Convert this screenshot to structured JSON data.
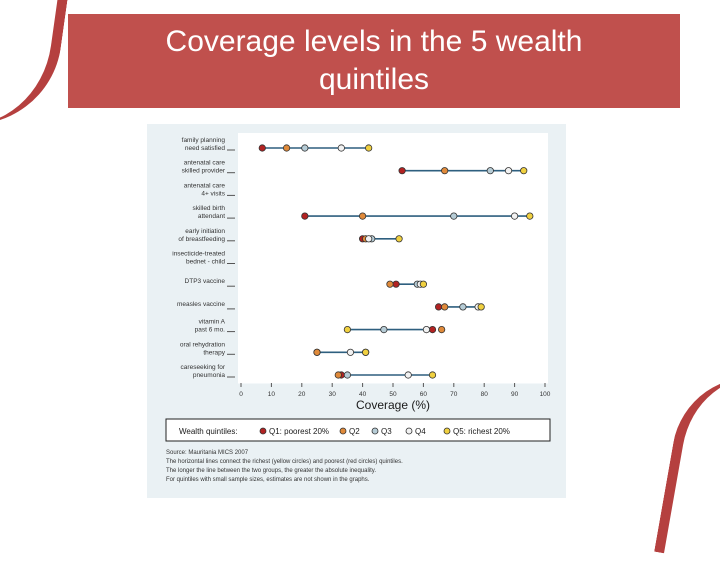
{
  "slide": {
    "title": "Coverage levels in the 5 wealth quintiles",
    "accent_color": "#c0504d"
  },
  "chart_data": {
    "type": "dot",
    "xlabel": "Coverage (%)",
    "xlim": [
      0,
      100
    ],
    "xticks": [
      "0",
      "10",
      "20",
      "30",
      "40",
      "50",
      "60",
      "70",
      "80",
      "90",
      "100"
    ],
    "categories": [
      [
        "family planning",
        "need satisfied"
      ],
      [
        "antenatal care",
        "skilled provider"
      ],
      [
        "antenatal care",
        "4+ visits"
      ],
      [
        "skilled birth",
        "attendant"
      ],
      [
        "early initiation",
        "of breastfeeding"
      ],
      [
        "insecticide-treated",
        "bednet - child"
      ],
      [
        "DTP3 vaccine"
      ],
      [
        "measles vaccine"
      ],
      [
        "vitamin A",
        "past 6 mo."
      ],
      [
        "oral rehydration",
        "therapy"
      ],
      [
        "careseeking for",
        "pneumonia"
      ]
    ],
    "series": [
      {
        "name": "Q1: poorest 20%",
        "color": "#b22222",
        "values": [
          7,
          53,
          null,
          21,
          40,
          null,
          51,
          65,
          63,
          25,
          33
        ]
      },
      {
        "name": "Q2",
        "color": "#e08a3a",
        "values": [
          15,
          67,
          null,
          40,
          41,
          null,
          49,
          67,
          66,
          25,
          32
        ]
      },
      {
        "name": "Q3",
        "color": "#b6ccd6",
        "values": [
          21,
          82,
          null,
          70,
          43,
          null,
          58,
          73,
          47,
          41,
          35
        ]
      },
      {
        "name": "Q4",
        "color": "#f2f2f2",
        "values": [
          33,
          88,
          null,
          90,
          42,
          null,
          59,
          78,
          61,
          36,
          55
        ]
      },
      {
        "name": "Q5: richest 20%",
        "color": "#f0d040",
        "values": [
          42,
          93,
          null,
          95,
          52,
          null,
          60,
          79,
          35,
          41,
          63
        ]
      }
    ],
    "legend": {
      "label": "Wealth quintiles:",
      "items": [
        "Q1: poorest 20%",
        "Q2",
        "Q3",
        "Q4",
        "Q5: richest 20%"
      ]
    },
    "notes": [
      "Source: Mauritania MICS 2007",
      "The horizontal lines connect the richest (yellow circles) and poorest (red circles) quintiles.",
      "The longer the line between the two groups, the greater the absolute inequality.",
      "For quintiles with small sample sizes, estimates are not shown in the graphs."
    ],
    "line_color": "#2e5f7f",
    "grid": false
  }
}
